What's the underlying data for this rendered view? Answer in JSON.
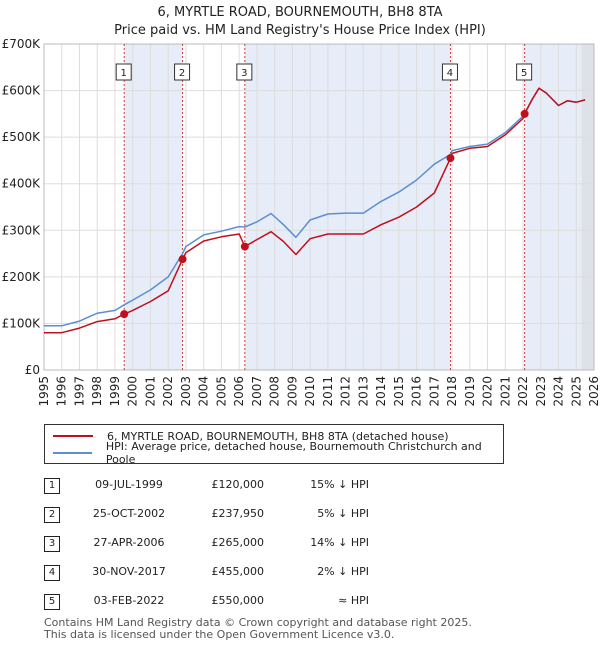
{
  "chart_data": {
    "type": "line",
    "title": "6, MYRTLE ROAD, BOURNEMOUTH, BH8 8TA",
    "subtitle": "Price paid vs. HM Land Registry's House Price Index (HPI)",
    "xlim": [
      1995,
      2026
    ],
    "ylim": [
      0,
      700000
    ],
    "xticks": [
      1995,
      1996,
      1997,
      1998,
      1999,
      2000,
      2001,
      2002,
      2003,
      2004,
      2005,
      2006,
      2007,
      2008,
      2009,
      2010,
      2011,
      2012,
      2013,
      2014,
      2015,
      2016,
      2017,
      2018,
      2019,
      2020,
      2021,
      2022,
      2023,
      2024,
      2025,
      2026
    ],
    "yticks": [
      {
        "value": 0,
        "label": "£0"
      },
      {
        "value": 100000,
        "label": "£100K"
      },
      {
        "value": 200000,
        "label": "£200K"
      },
      {
        "value": 300000,
        "label": "£300K"
      },
      {
        "value": 400000,
        "label": "£400K"
      },
      {
        "value": 500000,
        "label": "£500K"
      },
      {
        "value": 600000,
        "label": "£600K"
      },
      {
        "value": 700000,
        "label": "£700K"
      }
    ],
    "grid": true,
    "forecast_start": 2025.3,
    "series": [
      {
        "name": "HPI: Average price, detached house, Bournemouth Christchurch and Poole",
        "color": "#5b8fd0",
        "x": [
          1995,
          1996,
          1997,
          1998,
          1999,
          1999.52,
          2000,
          2001,
          2002,
          2002.81,
          2003,
          2004,
          2005,
          2006,
          2006.32,
          2007,
          2007.8,
          2008.5,
          2009.2,
          2010,
          2011,
          2012,
          2013,
          2014,
          2015,
          2016,
          2017,
          2017.91,
          2018,
          2019,
          2020,
          2021,
          2022,
          2022.09,
          2022.5,
          2022.9,
          2023.3,
          2024,
          2024.5,
          2025,
          2025.5
        ],
        "y": [
          95000,
          95000,
          105000,
          122000,
          128000,
          140000,
          150000,
          172000,
          200000,
          250000,
          265000,
          290000,
          298000,
          308000,
          307000,
          318000,
          336000,
          312000,
          285000,
          322000,
          335000,
          337000,
          337000,
          362000,
          382000,
          408000,
          442000,
          463000,
          471000,
          480000,
          485000,
          510000,
          545000,
          550000,
          580000,
          605000,
          595000,
          568000,
          578000,
          575000,
          580000
        ]
      },
      {
        "name": "6, MYRTLE ROAD, BOURNEMOUTH, BH8 8TA (detached house)",
        "color": "#c0101c",
        "x": [
          1995,
          1996,
          1997,
          1998,
          1999,
          1999.52,
          2000,
          2001,
          2002,
          2002.81,
          2003,
          2004,
          2005,
          2006,
          2006.32,
          2007,
          2007.8,
          2008.5,
          2009.2,
          2010,
          2011,
          2012,
          2013,
          2014,
          2015,
          2016,
          2017,
          2017.91,
          2018,
          2019,
          2020,
          2021,
          2022,
          2022.09,
          2022.5,
          2022.9,
          2023.3,
          2024,
          2024.5,
          2025,
          2025.5
        ],
        "y": [
          80000,
          80000,
          90000,
          104000,
          110000,
          120000,
          128000,
          147000,
          170000,
          237950,
          252000,
          277000,
          286000,
          292000,
          265000,
          280000,
          297000,
          276000,
          248000,
          282000,
          292000,
          292000,
          292000,
          312000,
          328000,
          350000,
          380000,
          455000,
          465000,
          476000,
          480000,
          505000,
          540000,
          550000,
          580000,
          605000,
          595000,
          568000,
          578000,
          575000,
          580000
        ]
      }
    ],
    "sales": [
      {
        "num": "1",
        "x": 1999.52,
        "price": 120000,
        "date": "09-JUL-1999",
        "price_label": "£120,000",
        "rel": "15% ↓ HPI"
      },
      {
        "num": "2",
        "x": 2002.81,
        "price": 237950,
        "date": "25-OCT-2002",
        "price_label": "£237,950",
        "rel": "5% ↓ HPI"
      },
      {
        "num": "3",
        "x": 2006.32,
        "price": 265000,
        "date": "27-APR-2006",
        "price_label": "£265,000",
        "rel": "14% ↓ HPI"
      },
      {
        "num": "4",
        "x": 2017.91,
        "price": 455000,
        "date": "30-NOV-2017",
        "price_label": "£455,000",
        "rel": "2% ↓ HPI"
      },
      {
        "num": "5",
        "x": 2022.09,
        "price": 550000,
        "date": "03-FEB-2022",
        "price_label": "£550,000",
        "rel": "≈ HPI"
      }
    ]
  },
  "legend": {
    "property_label": "6, MYRTLE ROAD, BOURNEMOUTH, BH8 8TA (detached house)",
    "hpi_label": "HPI: Average price, detached house, Bournemouth Christchurch and Poole"
  },
  "footer": {
    "line1": "Contains HM Land Registry data © Crown copyright and database right 2025.",
    "line2": "This data is licensed under the Open Government Licence v3.0."
  }
}
